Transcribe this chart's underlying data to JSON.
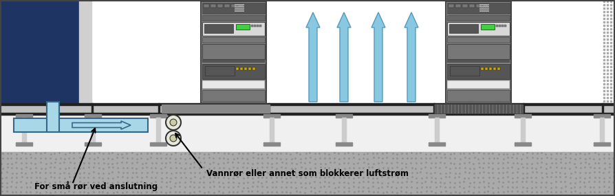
{
  "bg_color": "#ffffff",
  "wall_color": "#1e3564",
  "wall_side_color": "#d0d0d0",
  "right_texture_color": "#cccccc",
  "floor_top_color": "#c0c0c0",
  "floor_top_dark": "#222222",
  "floor_mid_color": "#b8b8b8",
  "grate_color": "#555555",
  "grate_bg": "#888888",
  "subfloor_bg": "#f0f0f0",
  "ground_color": "#aaaaaa",
  "ground_dots": "#888888",
  "support_leg_color": "#cccccc",
  "support_leg_dark": "#888888",
  "support_base_color": "#e0e0e0",
  "rack_body": "#8a8a8a",
  "rack_frame": "#444444",
  "rack_slot_dark": "#555555",
  "rack_slot_mid": "#777777",
  "rack_slot_light": "#aaaaaa",
  "rack_white_slot": "#ffffff",
  "rack_green": "#44cc44",
  "rack_green_display": "#44cc44",
  "rack_yellow_dots": "#ccaa00",
  "duct_fill": "#a8d8e8",
  "duct_border": "#336688",
  "arrow_cyan_fill": "#88c8e0",
  "arrow_cyan_border": "#5599bb",
  "pipe_fill": "#e8e8d8",
  "pipe_border": "#333333",
  "label1": "Vannrør eller annet som blokkerer luftstrøm",
  "label2": "For små rør ved anslutning",
  "label_color": "#000000",
  "label_fontsize": 8.5,
  "label_fontweight": "bold",
  "border_color": "#444444"
}
